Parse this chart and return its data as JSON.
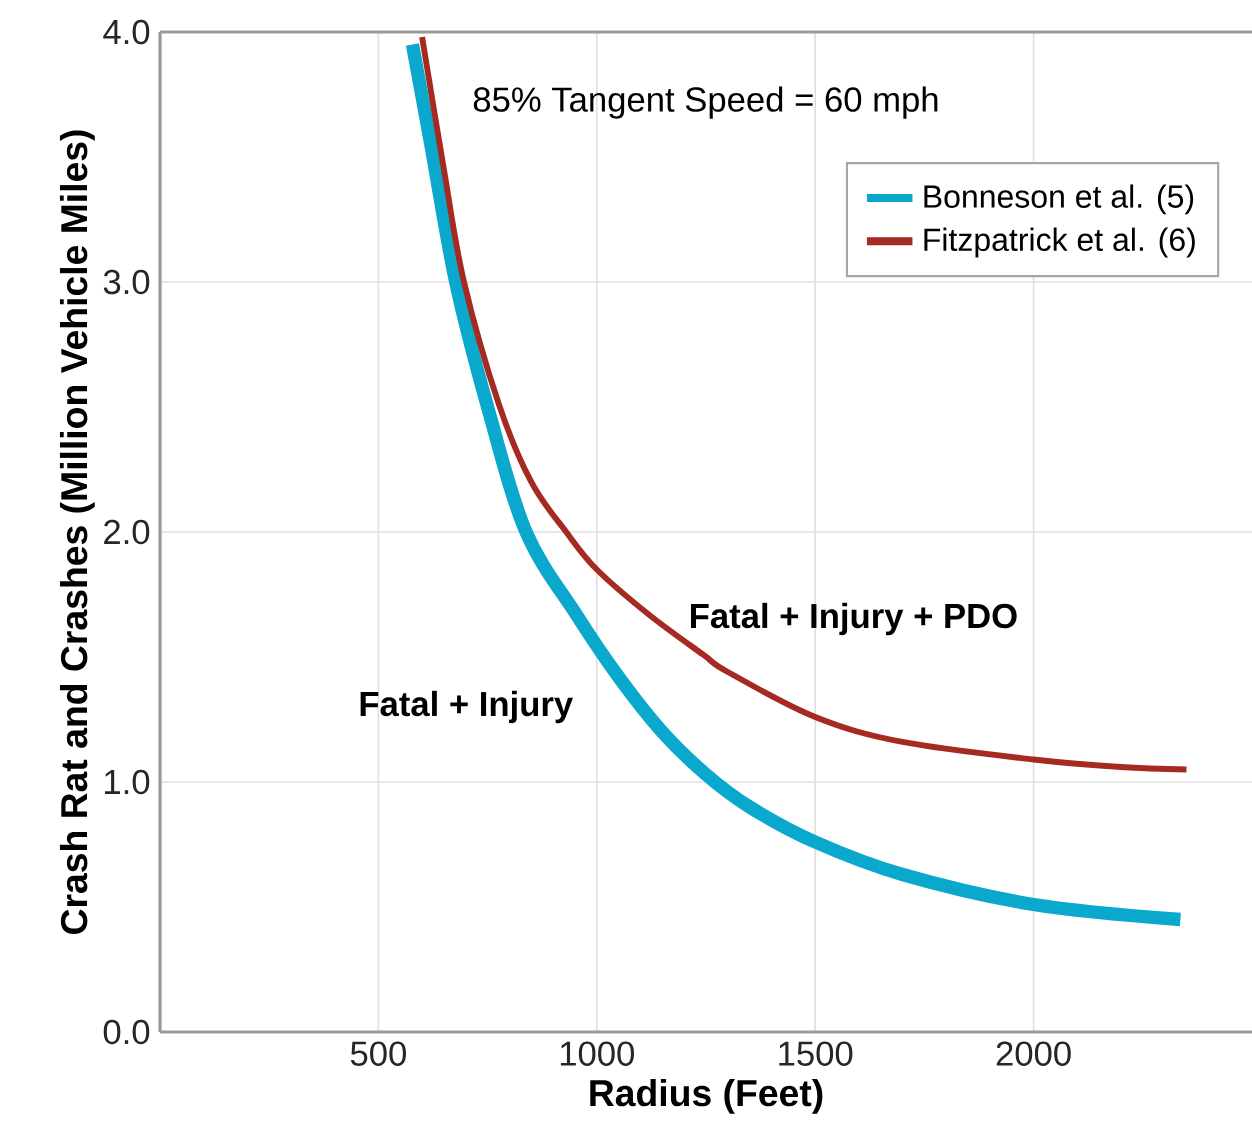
{
  "chart_data": {
    "type": "line",
    "xlabel": "Radius (Feet)",
    "ylabel": "Crash Rat and Crashes (Million Vehicle Miles)",
    "xlim": [
      0,
      2500
    ],
    "ylim": [
      0,
      4
    ],
    "xticks": [
      500,
      1000,
      1500,
      2000
    ],
    "yticks": [
      {
        "value": 0,
        "label": "0.0"
      },
      {
        "value": 1,
        "label": "1.0"
      },
      {
        "value": 2,
        "label": "2.0"
      },
      {
        "value": 3,
        "label": "3.0"
      },
      {
        "value": 4,
        "label": "4.0"
      }
    ],
    "grid": true,
    "legend": "top right",
    "marker": "none",
    "line_style": "solid",
    "annotations": [
      "85% Tangent Speed = 60 mph",
      "Fatal + Injury",
      "Fatal + Injury + PDO"
    ],
    "series": [
      {
        "name": "Bonneson et al. (5)",
        "color": "#0aa8cc",
        "x": [
          578,
          620,
          677,
          750,
          838,
          953,
          1050,
          1150,
          1250,
          1350,
          1500,
          1700,
          2000,
          2336
        ],
        "values": [
          3.95,
          3.55,
          3.0,
          2.5,
          2.0,
          1.67,
          1.42,
          1.2,
          1.03,
          0.9,
          0.76,
          0.63,
          0.51,
          0.45
        ]
      },
      {
        "name": "Fitzpatrick et al. (6)",
        "color": "#a52a22",
        "x": [
          600,
          650,
          696,
          776,
          850,
          930,
          1000,
          1119,
          1243,
          1300,
          1500,
          1700,
          2000,
          2200,
          2350
        ],
        "values": [
          3.98,
          3.45,
          3.0,
          2.51,
          2.2,
          2.0,
          1.85,
          1.67,
          1.51,
          1.44,
          1.26,
          1.16,
          1.09,
          1.06,
          1.05
        ]
      }
    ]
  }
}
